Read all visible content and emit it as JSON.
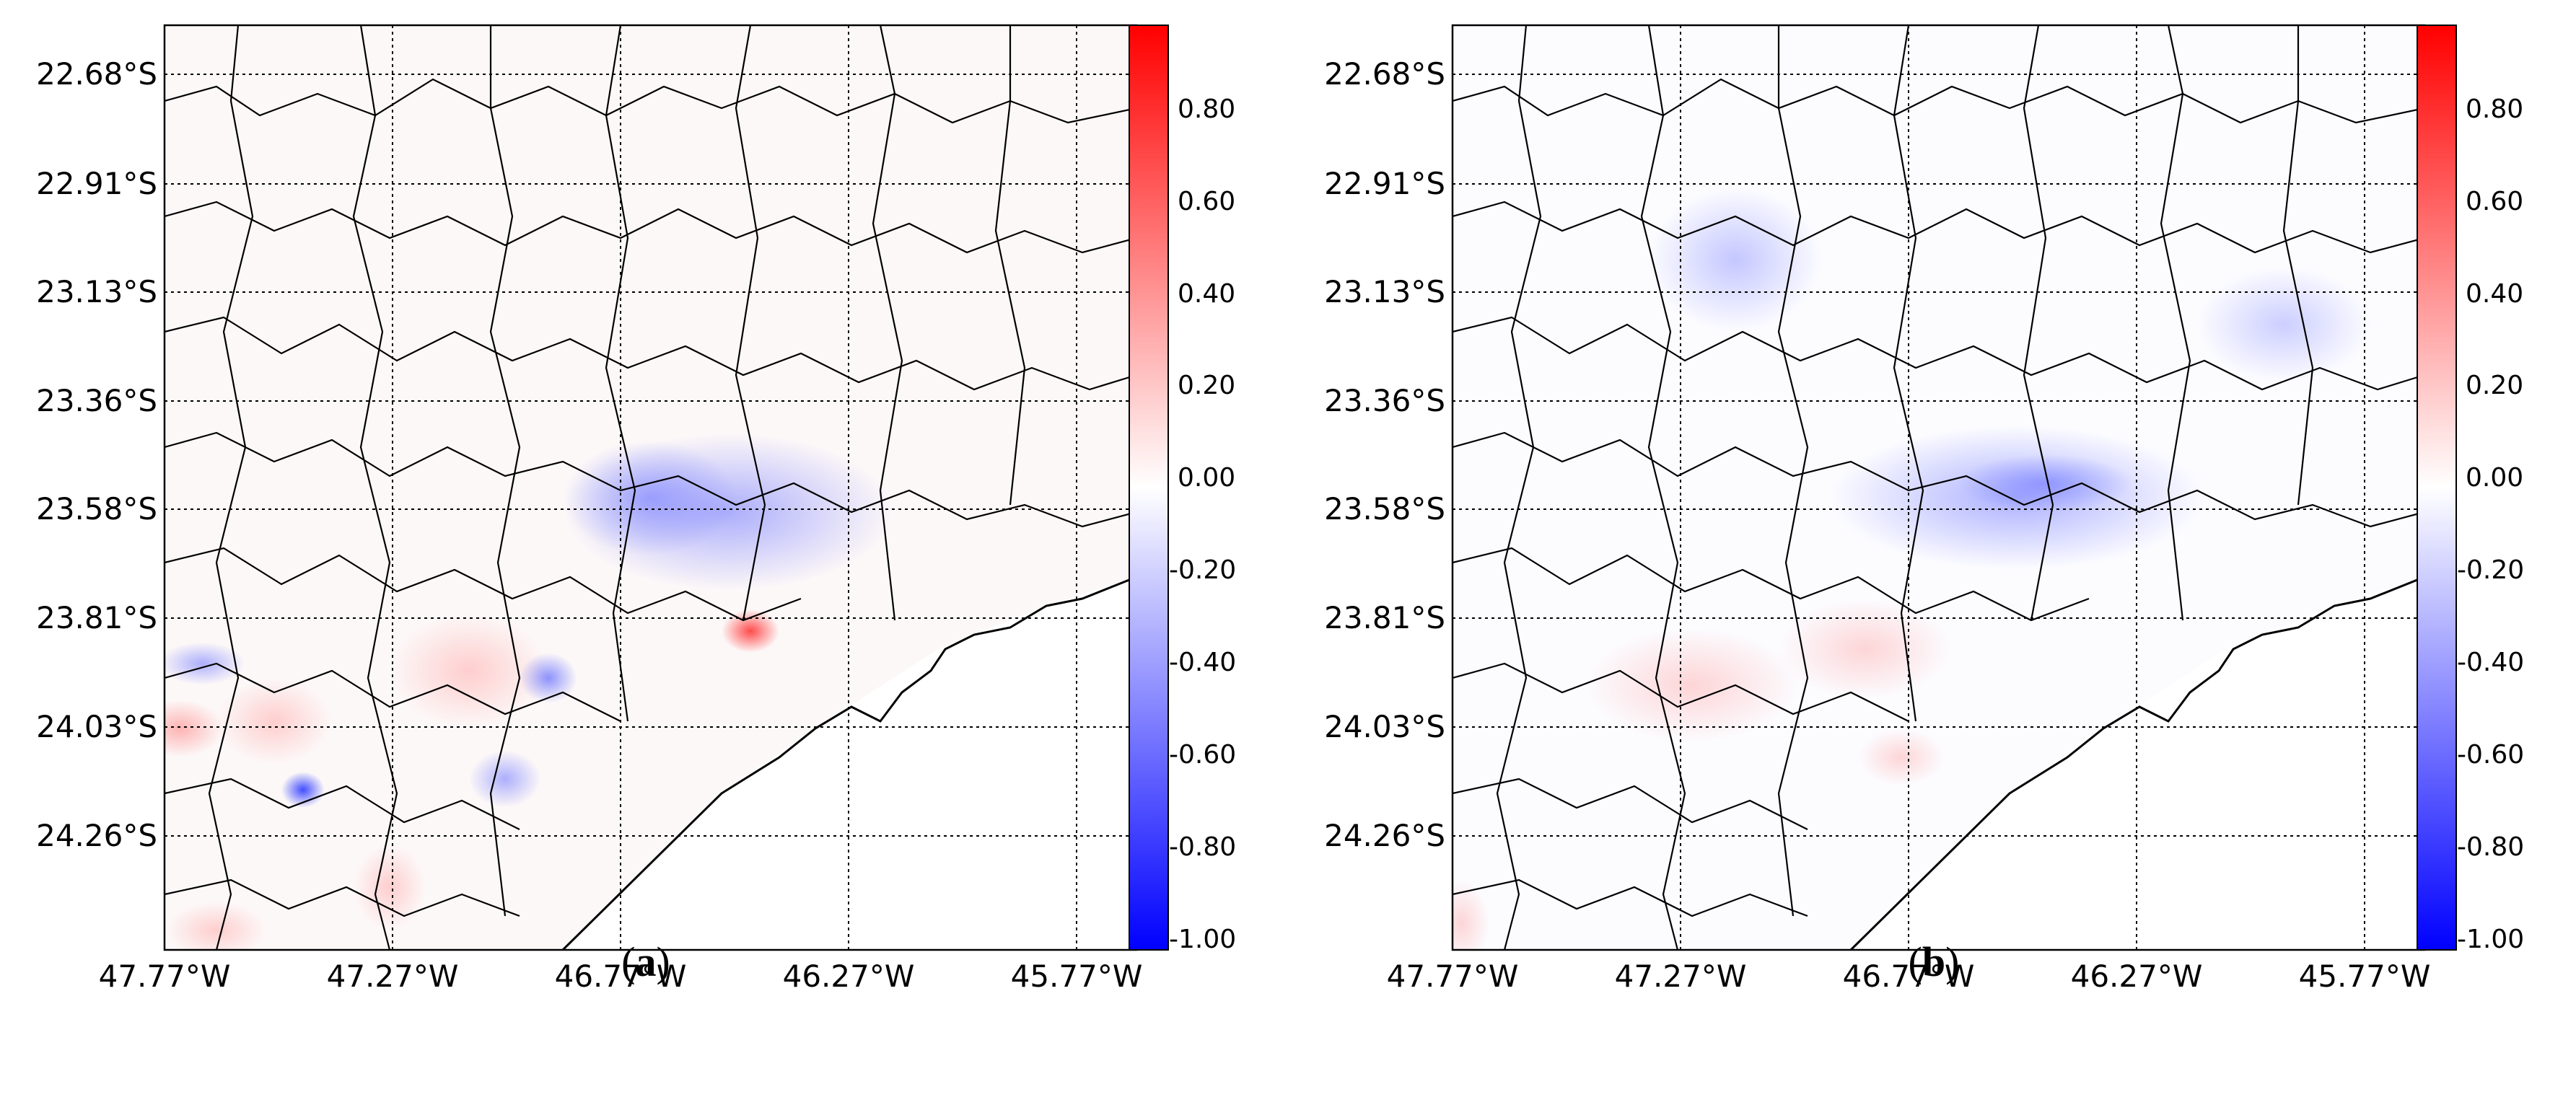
{
  "figure": {
    "panels": [
      {
        "id": "a",
        "caption_letter": "a",
        "lat_ticks": [
          "22.68°S",
          "22.91°S",
          "23.13°S",
          "23.36°S",
          "23.58°S",
          "23.81°S",
          "24.03°S",
          "24.26°S"
        ],
        "lon_ticks": [
          "47.77°W",
          "47.27°W",
          "46.77°W",
          "46.27°W",
          "45.77°W"
        ],
        "colorbar": {
          "ticks": [
            "0.80",
            "0.60",
            "0.40",
            "0.20",
            "0.00",
            "-0.20",
            "-0.40",
            "-0.60",
            "-0.80",
            "-1.00"
          ],
          "min_color": "#0000ff",
          "mid_color": "#ffffff",
          "max_color": "#ff0000"
        }
      },
      {
        "id": "b",
        "caption_letter": "b",
        "lat_ticks": [
          "22.68°S",
          "22.91°S",
          "23.13°S",
          "23.36°S",
          "23.58°S",
          "23.81°S",
          "24.03°S",
          "24.26°S"
        ],
        "lon_ticks": [
          "47.77°W",
          "47.27°W",
          "46.77°W",
          "46.27°W",
          "45.77°W"
        ],
        "colorbar": {
          "ticks": [
            "0.80",
            "0.60",
            "0.40",
            "0.20",
            "0.00",
            "-0.20",
            "-0.40",
            "-0.60",
            "-0.80",
            "-1.00"
          ],
          "min_color": "#0000ff",
          "mid_color": "#ffffff",
          "max_color": "#ff0000"
        }
      }
    ]
  }
}
